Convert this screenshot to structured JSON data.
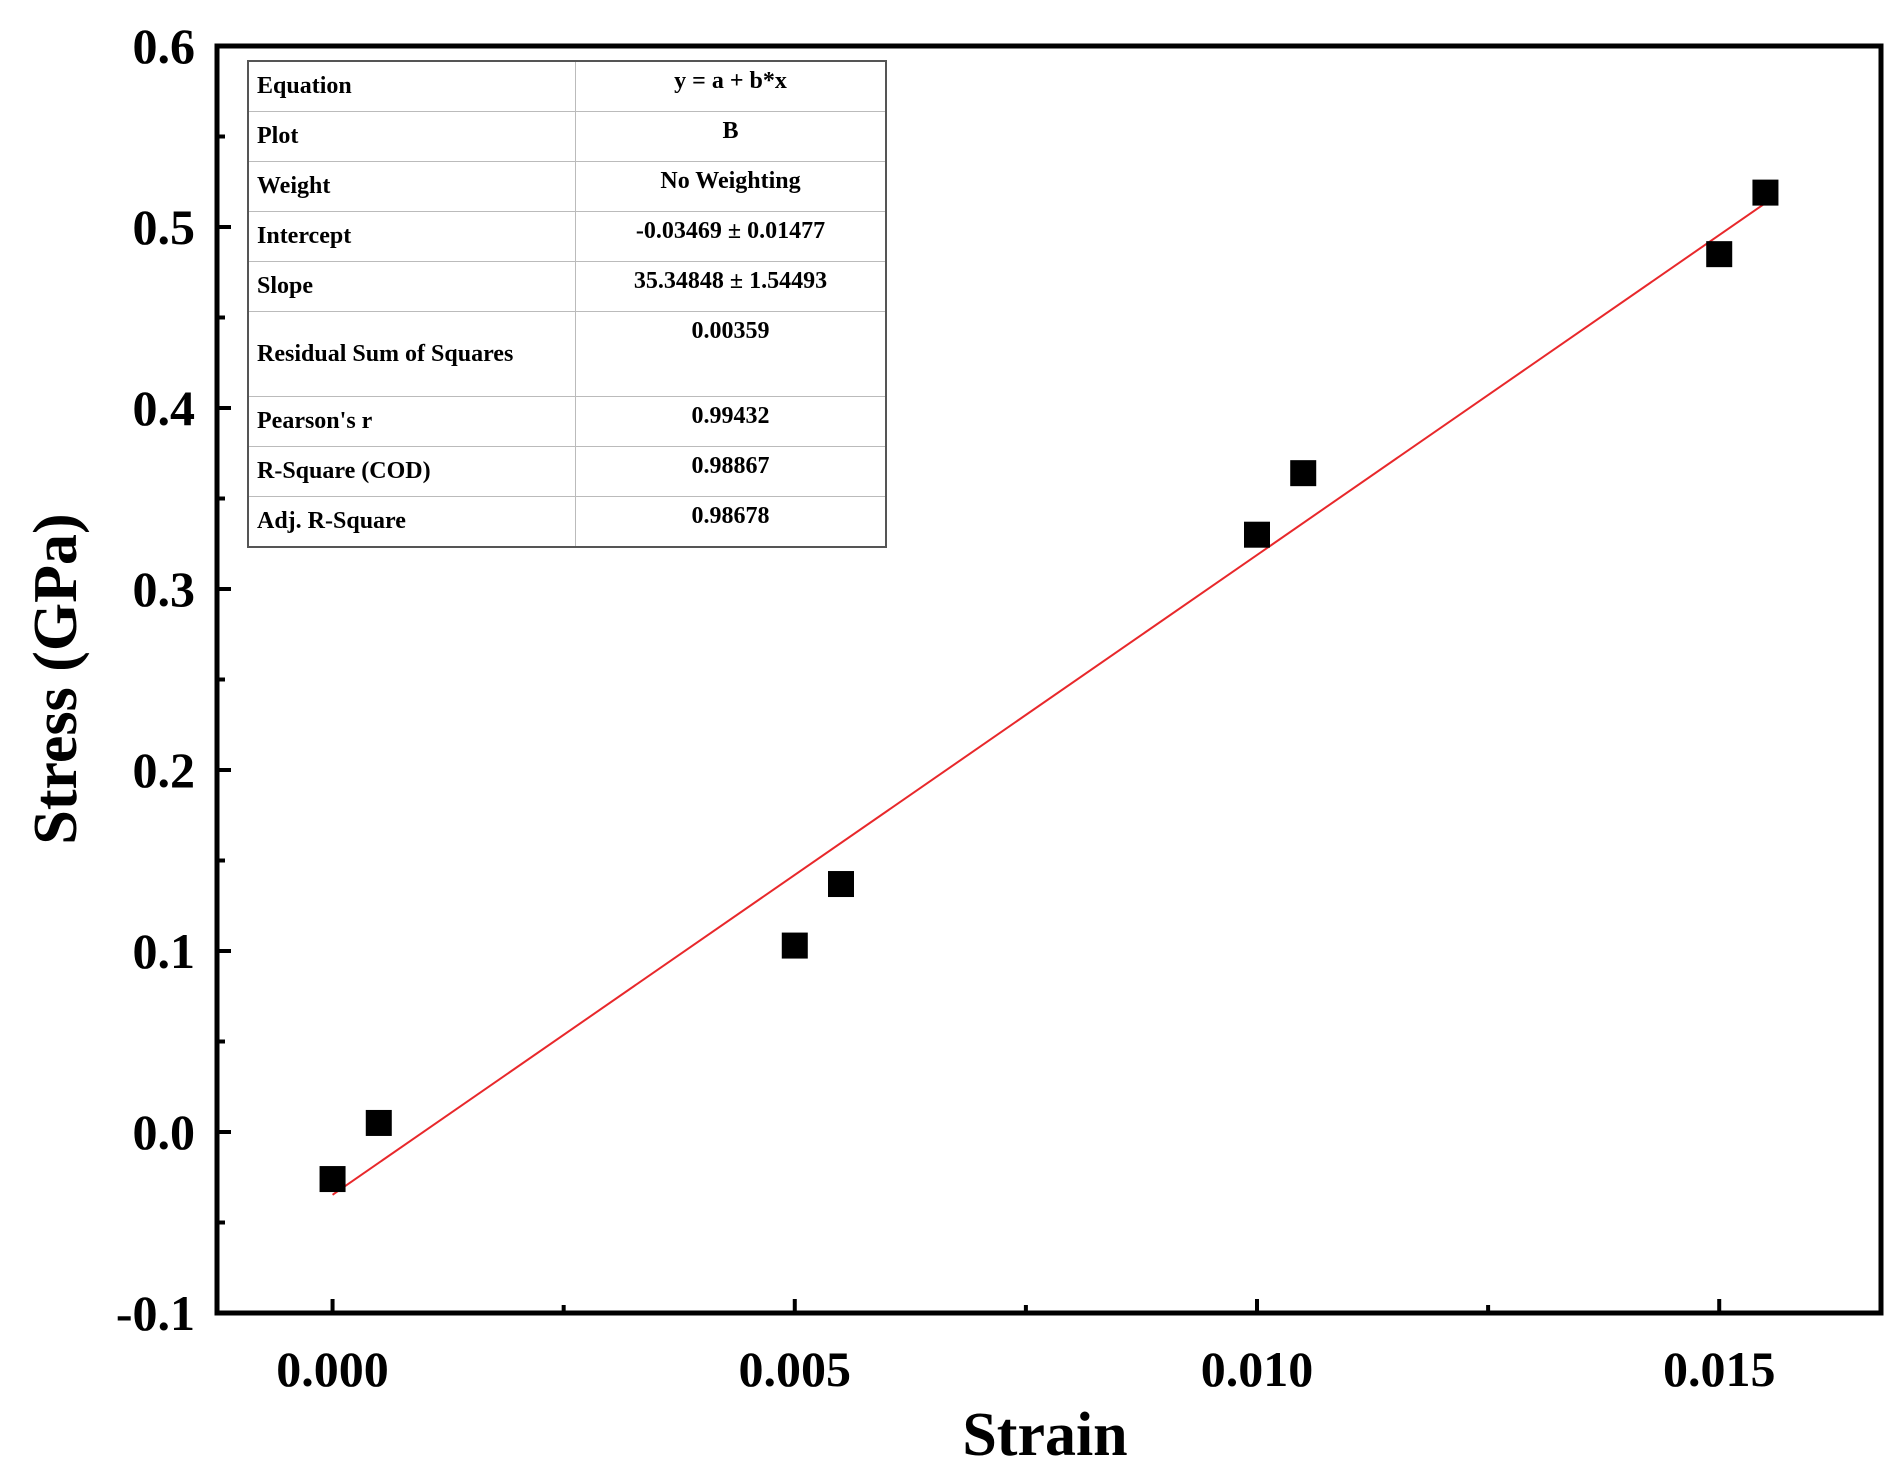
{
  "chart_data": {
    "type": "scatter",
    "xlabel": "Strain",
    "ylabel": "Stress (GPa)",
    "xlim": [
      -0.00125,
      0.01675
    ],
    "ylim": [
      -0.1,
      0.6
    ],
    "x_ticks": [
      0.0,
      0.005,
      0.01,
      0.015
    ],
    "x_tick_labels": [
      "0.000",
      "0.005",
      "0.010",
      "0.015"
    ],
    "y_ticks": [
      -0.1,
      0.0,
      0.1,
      0.2,
      0.3,
      0.4,
      0.5,
      0.6
    ],
    "y_tick_labels": [
      "-0.1",
      "0.0",
      "0.1",
      "0.2",
      "0.3",
      "0.4",
      "0.5",
      "0.6"
    ],
    "series": [
      {
        "name": "B",
        "x": [
          0.0,
          0.0005,
          0.005,
          0.0055,
          0.01,
          0.0105,
          0.015,
          0.0155
        ],
        "y": [
          -0.026,
          0.005,
          0.103,
          0.137,
          0.33,
          0.364,
          0.485,
          0.519
        ],
        "marker": "square",
        "color": "#000000"
      }
    ],
    "fit": {
      "intercept": -0.03469,
      "slope": 35.34848,
      "x_range": [
        0.0,
        0.0155
      ],
      "color": "#e8282b"
    },
    "legend_table": {
      "placement": "top-left",
      "rows": [
        {
          "key": "Equation",
          "value": "y = a + b*x"
        },
        {
          "key": "Plot",
          "value": "B"
        },
        {
          "key": "Weight",
          "value": "No Weighting"
        },
        {
          "key": "Intercept",
          "value": "-0.03469 ± 0.01477"
        },
        {
          "key": "Slope",
          "value": "35.34848 ± 1.54493"
        },
        {
          "key": "Residual Sum of Squares",
          "value": "0.00359"
        },
        {
          "key": "Pearson's r",
          "value": "0.99432"
        },
        {
          "key": "R-Square (COD)",
          "value": "0.98867"
        },
        {
          "key": "Adj. R-Square",
          "value": "0.98678"
        }
      ]
    }
  }
}
